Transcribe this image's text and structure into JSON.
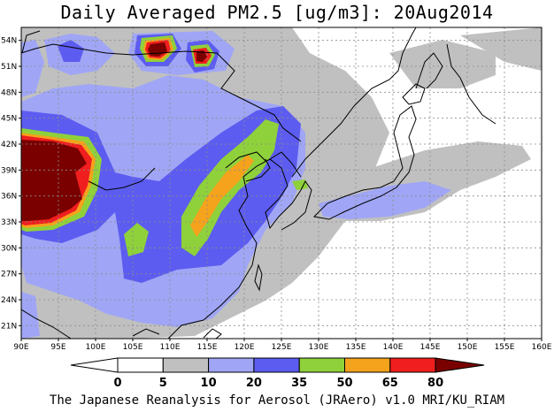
{
  "title": "Daily Averaged PM2.5 [ug/m3]: 20Aug2014",
  "footer": "The Japanese Reanalysis for Aerosol (JRAero) v1.0 MRI/KU_RIAM",
  "map": {
    "lon_range": [
      90,
      160
    ],
    "lat_range": [
      19.5,
      55.5
    ],
    "lon_ticks": [
      "90E",
      "95E",
      "100E",
      "105E",
      "110E",
      "115E",
      "120E",
      "125E",
      "130E",
      "135E",
      "140E",
      "145E",
      "150E",
      "155E",
      "160E"
    ],
    "lat_ticks": [
      "21N",
      "24N",
      "27N",
      "30N",
      "33N",
      "36N",
      "39N",
      "42N",
      "45N",
      "48N",
      "51N",
      "54N"
    ]
  },
  "colorbar": {
    "levels": [
      "0",
      "5",
      "10",
      "20",
      "35",
      "50",
      "65",
      "80"
    ],
    "colors": {
      "below": "#ffffff",
      "c0": "#ffffff",
      "c5": "#c0c0c0",
      "c10": "#a0a6f5",
      "c20": "#5c5cf0",
      "c35": "#8fd13a",
      "c50": "#f5a21c",
      "c65": "#f01e1e",
      "c80": "#7a0000"
    }
  }
}
